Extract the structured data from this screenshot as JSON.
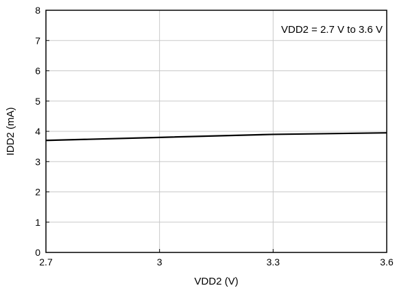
{
  "chart_data": {
    "type": "line",
    "title": "",
    "xlabel": "VDD2 (V)",
    "ylabel": "IDD2 (mA)",
    "xlim": [
      2.7,
      3.6
    ],
    "ylim": [
      0,
      8
    ],
    "x_ticks": [
      "2.7",
      "3",
      "3.3",
      "3.6"
    ],
    "y_ticks": [
      "0",
      "1",
      "2",
      "3",
      "4",
      "5",
      "6",
      "7",
      "8"
    ],
    "grid": true,
    "annotation": "VDD2 = 2.7 V to 3.6 V",
    "series": [
      {
        "x": [
          2.7,
          3.0,
          3.3,
          3.6
        ],
        "y": [
          3.7,
          3.8,
          3.9,
          3.95
        ],
        "color": "#000000"
      }
    ]
  }
}
